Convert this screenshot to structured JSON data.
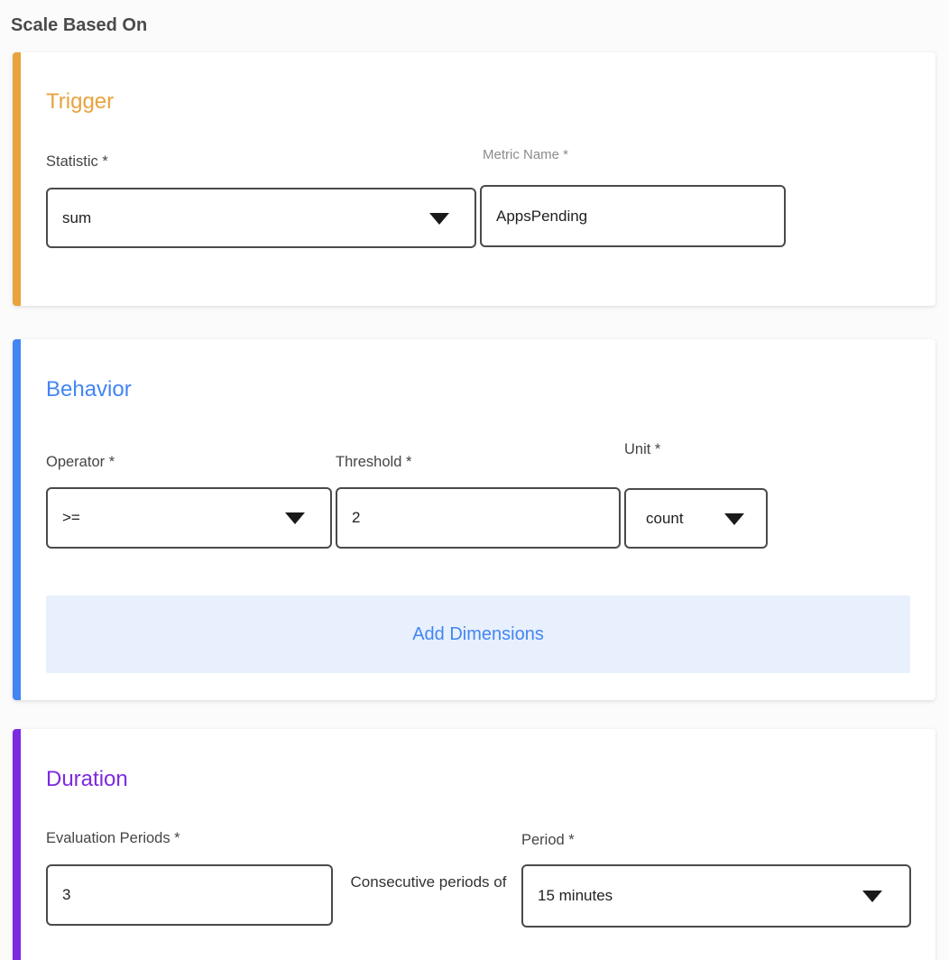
{
  "page": {
    "title": "Scale Based On"
  },
  "colors": {
    "trigger_accent": "#E9A33D",
    "behavior_accent": "#4285F4",
    "duration_accent": "#7C2AE0",
    "add_dimensions_bg": "#E8F0FD"
  },
  "trigger": {
    "heading": "Trigger",
    "statistic_label": "Statistic *",
    "statistic_value": "sum",
    "metric_name_label": "Metric Name *",
    "metric_name_value": "AppsPending"
  },
  "behavior": {
    "heading": "Behavior",
    "operator_label": "Operator *",
    "operator_value": ">=",
    "threshold_label": "Threshold *",
    "threshold_value": "2",
    "unit_label": "Unit *",
    "unit_value": "count",
    "add_dimensions_label": "Add Dimensions"
  },
  "duration": {
    "heading": "Duration",
    "evaluation_periods_label": "Evaluation Periods *",
    "evaluation_periods_value": "3",
    "consecutive_text": "Consecutive periods of",
    "period_label": "Period *",
    "period_value": "15 minutes"
  }
}
